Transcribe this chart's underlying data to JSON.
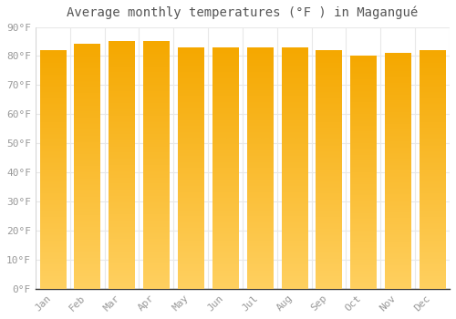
{
  "title": "Average monthly temperatures (°F ) in Magangué",
  "months": [
    "Jan",
    "Feb",
    "Mar",
    "Apr",
    "May",
    "Jun",
    "Jul",
    "Aug",
    "Sep",
    "Oct",
    "Nov",
    "Dec"
  ],
  "values": [
    82,
    84,
    85,
    85,
    83,
    83,
    83,
    83,
    82,
    80,
    81,
    82
  ],
  "bar_color_top": "#F5A800",
  "bar_color_bottom": "#FFD060",
  "background_color": "#FFFFFF",
  "grid_color": "#E8E8E8",
  "ylim": [
    0,
    90
  ],
  "yticks": [
    0,
    10,
    20,
    30,
    40,
    50,
    60,
    70,
    80,
    90
  ],
  "tick_label_color": "#999999",
  "title_color": "#555555",
  "title_fontsize": 10,
  "tick_fontsize": 8,
  "bar_width": 0.75
}
